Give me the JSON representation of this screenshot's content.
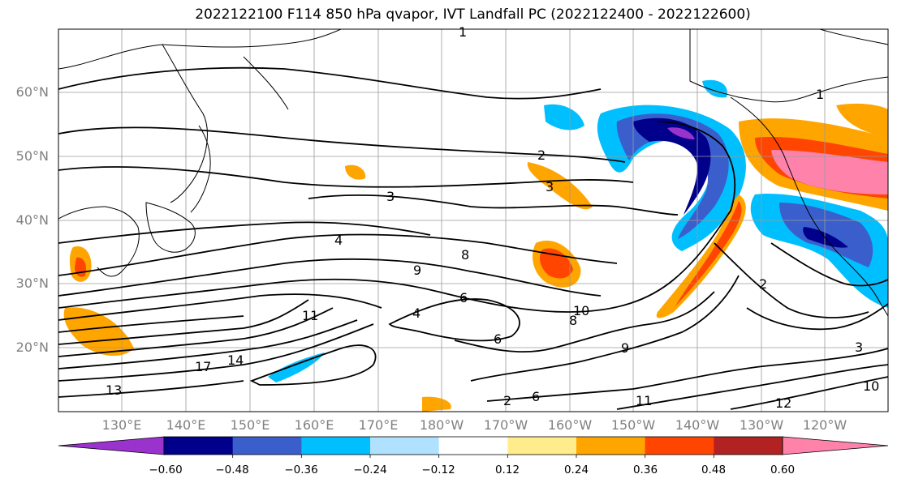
{
  "title": "2022122100 F114 850 hPa qvapor, IVT Landfall PC (2022122400 - 2022122600)",
  "lat_labels": [
    "60°N",
    "50°N",
    "40°N",
    "30°N",
    "20°N"
  ],
  "lon_labels": [
    "130°E",
    "140°E",
    "150°E",
    "160°E",
    "170°E",
    "180°W",
    "170°W",
    "160°W",
    "150°W",
    "140°W",
    "130°W",
    "120°W"
  ],
  "colorbar": {
    "ticks": [
      "−0.60",
      "−0.48",
      "−0.36",
      "−0.24",
      "−0.12",
      "0.12",
      "0.24",
      "0.36",
      "0.48",
      "0.60"
    ],
    "colors": [
      "#9a32cd",
      "#00008b",
      "#3a5fcd",
      "#00bfff",
      "#b0e2ff",
      "#ffffff",
      "#ffec8b",
      "#ffa500",
      "#ff4500",
      "#b22222",
      "#ff82ab"
    ]
  },
  "contour_labels": [
    "1",
    "2",
    "2",
    "3",
    "3",
    "4",
    "4",
    "6",
    "6",
    "6",
    "8",
    "8",
    "9",
    "9",
    "10",
    "10",
    "11",
    "11",
    "12",
    "13",
    "14",
    "17",
    "2",
    "1",
    "3"
  ]
}
